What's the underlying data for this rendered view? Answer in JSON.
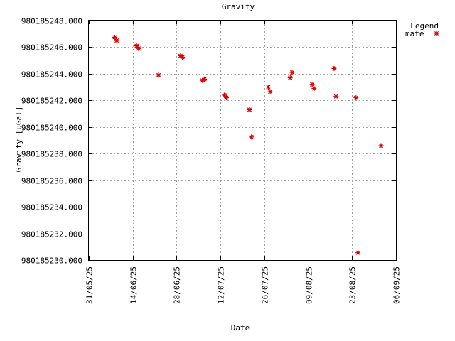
{
  "chart_data": {
    "type": "scatter",
    "title": "Gravity",
    "xlabel": "Date",
    "ylabel": "Gravity [uGal]",
    "legend": {
      "title": "Legend",
      "position": "top-right"
    },
    "grid": true,
    "ylim": [
      980185230.0,
      980185248.0
    ],
    "xlim": [
      "2025-05-31",
      "2025-09-06"
    ],
    "x_ticks": [
      "31/05/25",
      "14/06/25",
      "28/06/25",
      "12/07/25",
      "26/07/25",
      "09/08/25",
      "23/08/25",
      "06/09/25"
    ],
    "y_ticks": [
      "980185230.000",
      "980185232.000",
      "980185234.000",
      "980185236.000",
      "980185238.000",
      "980185240.000",
      "980185242.000",
      "980185244.000",
      "980185246.000",
      "980185248.000"
    ],
    "series": [
      {
        "name": "mate",
        "color": "#dd0000",
        "marker": "star",
        "points": [
          {
            "x": "2025-06-08 06:00",
            "y": 980185246.75
          },
          {
            "x": "2025-06-08 21:00",
            "y": 980185246.5
          },
          {
            "x": "2025-06-15 06:00",
            "y": 980185246.1
          },
          {
            "x": "2025-06-15 21:00",
            "y": 980185245.9
          },
          {
            "x": "2025-06-22 06:00",
            "y": 980185243.9
          },
          {
            "x": "2025-06-29 06:00",
            "y": 980185245.35
          },
          {
            "x": "2025-06-29 21:00",
            "y": 980185245.25
          },
          {
            "x": "2025-07-06 06:00",
            "y": 980185243.5
          },
          {
            "x": "2025-07-06 21:00",
            "y": 980185243.6
          },
          {
            "x": "2025-07-13 06:00",
            "y": 980185242.4
          },
          {
            "x": "2025-07-13 21:00",
            "y": 980185242.2
          },
          {
            "x": "2025-07-21 06:00",
            "y": 980185241.3
          },
          {
            "x": "2025-07-21 21:00",
            "y": 980185239.25
          },
          {
            "x": "2025-07-27 06:00",
            "y": 980185243.0
          },
          {
            "x": "2025-07-27 21:00",
            "y": 980185242.65
          },
          {
            "x": "2025-08-03 06:00",
            "y": 980185243.7
          },
          {
            "x": "2025-08-03 21:00",
            "y": 980185244.1
          },
          {
            "x": "2025-08-10 06:00",
            "y": 980185243.2
          },
          {
            "x": "2025-08-10 21:00",
            "y": 980185242.9
          },
          {
            "x": "2025-08-17 06:00",
            "y": 980185244.4
          },
          {
            "x": "2025-08-17 21:00",
            "y": 980185242.3
          },
          {
            "x": "2025-08-24 06:00",
            "y": 980185242.2
          },
          {
            "x": "2025-08-24 21:00",
            "y": 980185230.55
          },
          {
            "x": "2025-09-01 06:00",
            "y": 980185238.6
          }
        ]
      }
    ]
  }
}
